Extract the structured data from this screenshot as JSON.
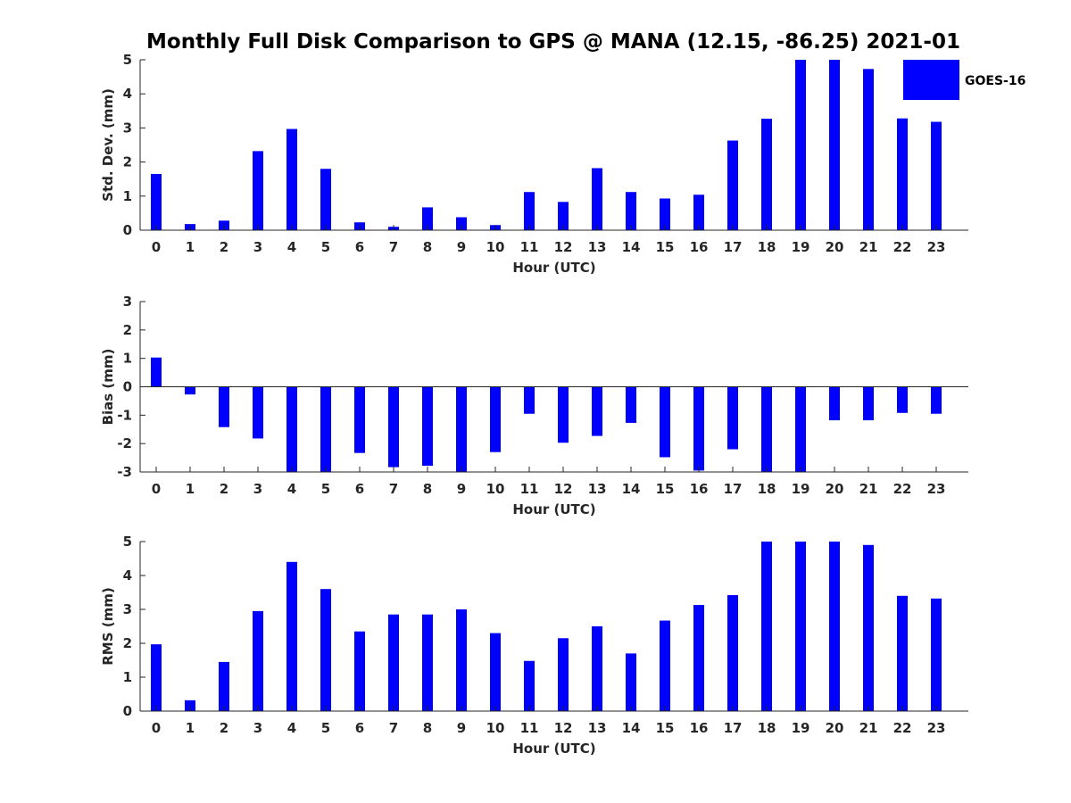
{
  "title": "Monthly Full Disk Comparison to GPS @ MANA (12.15, -86.25) 2021-01",
  "legend": {
    "label": "GOES-16",
    "color": "#0000ff"
  },
  "chart_data": [
    {
      "type": "bar",
      "xlabel": "Hour (UTC)",
      "ylabel": "Std. Dev. (mm)",
      "ylim": [
        0,
        5
      ],
      "yticks": [
        0,
        1,
        2,
        3,
        4,
        5
      ],
      "categories": [
        "0",
        "1",
        "2",
        "3",
        "4",
        "5",
        "6",
        "7",
        "8",
        "9",
        "10",
        "11",
        "12",
        "13",
        "14",
        "15",
        "16",
        "17",
        "18",
        "19",
        "20",
        "21",
        "22",
        "23"
      ],
      "series": [
        {
          "name": "GOES-16",
          "color": "#0000ff",
          "values": [
            1.65,
            0.18,
            0.28,
            2.32,
            2.97,
            1.8,
            0.23,
            0.1,
            0.67,
            0.38,
            0.15,
            1.12,
            0.83,
            1.82,
            1.12,
            0.93,
            1.04,
            2.63,
            3.27,
            5.0,
            5.0,
            4.73,
            3.28,
            3.18
          ]
        }
      ],
      "legend": "top-right"
    },
    {
      "type": "bar",
      "xlabel": "Hour (UTC)",
      "ylabel": "Bias (mm)",
      "ylim": [
        -3,
        3
      ],
      "yticks": [
        -3,
        -2,
        -1,
        0,
        1,
        2,
        3
      ],
      "categories": [
        "0",
        "1",
        "2",
        "3",
        "4",
        "5",
        "6",
        "7",
        "8",
        "9",
        "10",
        "11",
        "12",
        "13",
        "14",
        "15",
        "16",
        "17",
        "18",
        "19",
        "20",
        "21",
        "22",
        "23"
      ],
      "series": [
        {
          "name": "GOES-16",
          "color": "#0000ff",
          "values": [
            1.03,
            -0.27,
            -1.42,
            -1.82,
            -3.0,
            -3.0,
            -2.33,
            -2.83,
            -2.78,
            -3.0,
            -2.3,
            -0.95,
            -1.97,
            -1.73,
            -1.27,
            -2.48,
            -2.95,
            -2.2,
            -3.0,
            -3.0,
            -1.18,
            -1.18,
            -0.92,
            -0.95
          ]
        }
      ]
    },
    {
      "type": "bar",
      "xlabel": "Hour (UTC)",
      "ylabel": "RMS (mm)",
      "ylim": [
        0,
        5
      ],
      "yticks": [
        0,
        1,
        2,
        3,
        4,
        5
      ],
      "categories": [
        "0",
        "1",
        "2",
        "3",
        "4",
        "5",
        "6",
        "7",
        "8",
        "9",
        "10",
        "11",
        "12",
        "13",
        "14",
        "15",
        "16",
        "17",
        "18",
        "19",
        "20",
        "21",
        "22",
        "23"
      ],
      "series": [
        {
          "name": "GOES-16",
          "color": "#0000ff",
          "values": [
            1.97,
            0.32,
            1.45,
            2.95,
            4.4,
            3.6,
            2.35,
            2.85,
            2.85,
            3.0,
            2.3,
            1.48,
            2.15,
            2.5,
            1.7,
            2.67,
            3.13,
            3.42,
            5.0,
            5.0,
            5.0,
            4.9,
            3.4,
            3.32
          ]
        }
      ]
    }
  ]
}
